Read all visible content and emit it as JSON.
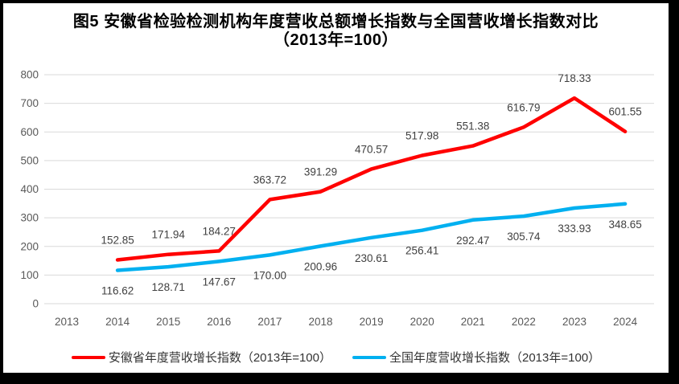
{
  "colors": {
    "anhui_red": "#FF0000",
    "national_blue": "#00B0F0",
    "gridline": "#D9D9D9",
    "axis_text": "#595959",
    "data_label_text": "#404040",
    "frame_border": "#000000",
    "background": "#FFFFFF"
  },
  "chart_data": {
    "type": "line",
    "title": "图5  安徽省检验检测机构年度营收总额增长指数与全国营收增长指数对比",
    "subtitle": "（2013年=100）",
    "x": [
      "2013",
      "2014",
      "2015",
      "2016",
      "2017",
      "2018",
      "2019",
      "2020",
      "2021",
      "2022",
      "2023",
      "2024"
    ],
    "xlabel": "",
    "ylabel": "",
    "ylim": [
      0,
      800
    ],
    "ytick_step": 100,
    "grid": true,
    "legend_position": "bottom",
    "series": [
      {
        "name": "安徽省年度营收增长指数（2013年=100）",
        "color": "#FF0000",
        "label_position": "above",
        "values": [
          null,
          152.85,
          171.94,
          184.27,
          363.72,
          391.29,
          470.57,
          517.98,
          551.38,
          616.79,
          718.33,
          601.55
        ],
        "labels": [
          null,
          "152.85",
          "171.94",
          "184.27",
          "363.72",
          "391.29",
          "470.57",
          "517.98",
          "551.38",
          "616.79",
          "718.33",
          "601.55"
        ]
      },
      {
        "name": "全国年度营收增长指数（2013年=100）",
        "color": "#00B0F0",
        "label_position": "below",
        "values": [
          null,
          116.62,
          128.71,
          147.67,
          170.0,
          200.96,
          230.61,
          256.41,
          292.47,
          305.74,
          333.93,
          348.65
        ],
        "labels": [
          null,
          "116.62",
          "128.71",
          "147.67",
          "170.00",
          "200.96",
          "230.61",
          "256.41",
          "292.47",
          "305.74",
          "333.93",
          "348.65"
        ]
      }
    ]
  }
}
